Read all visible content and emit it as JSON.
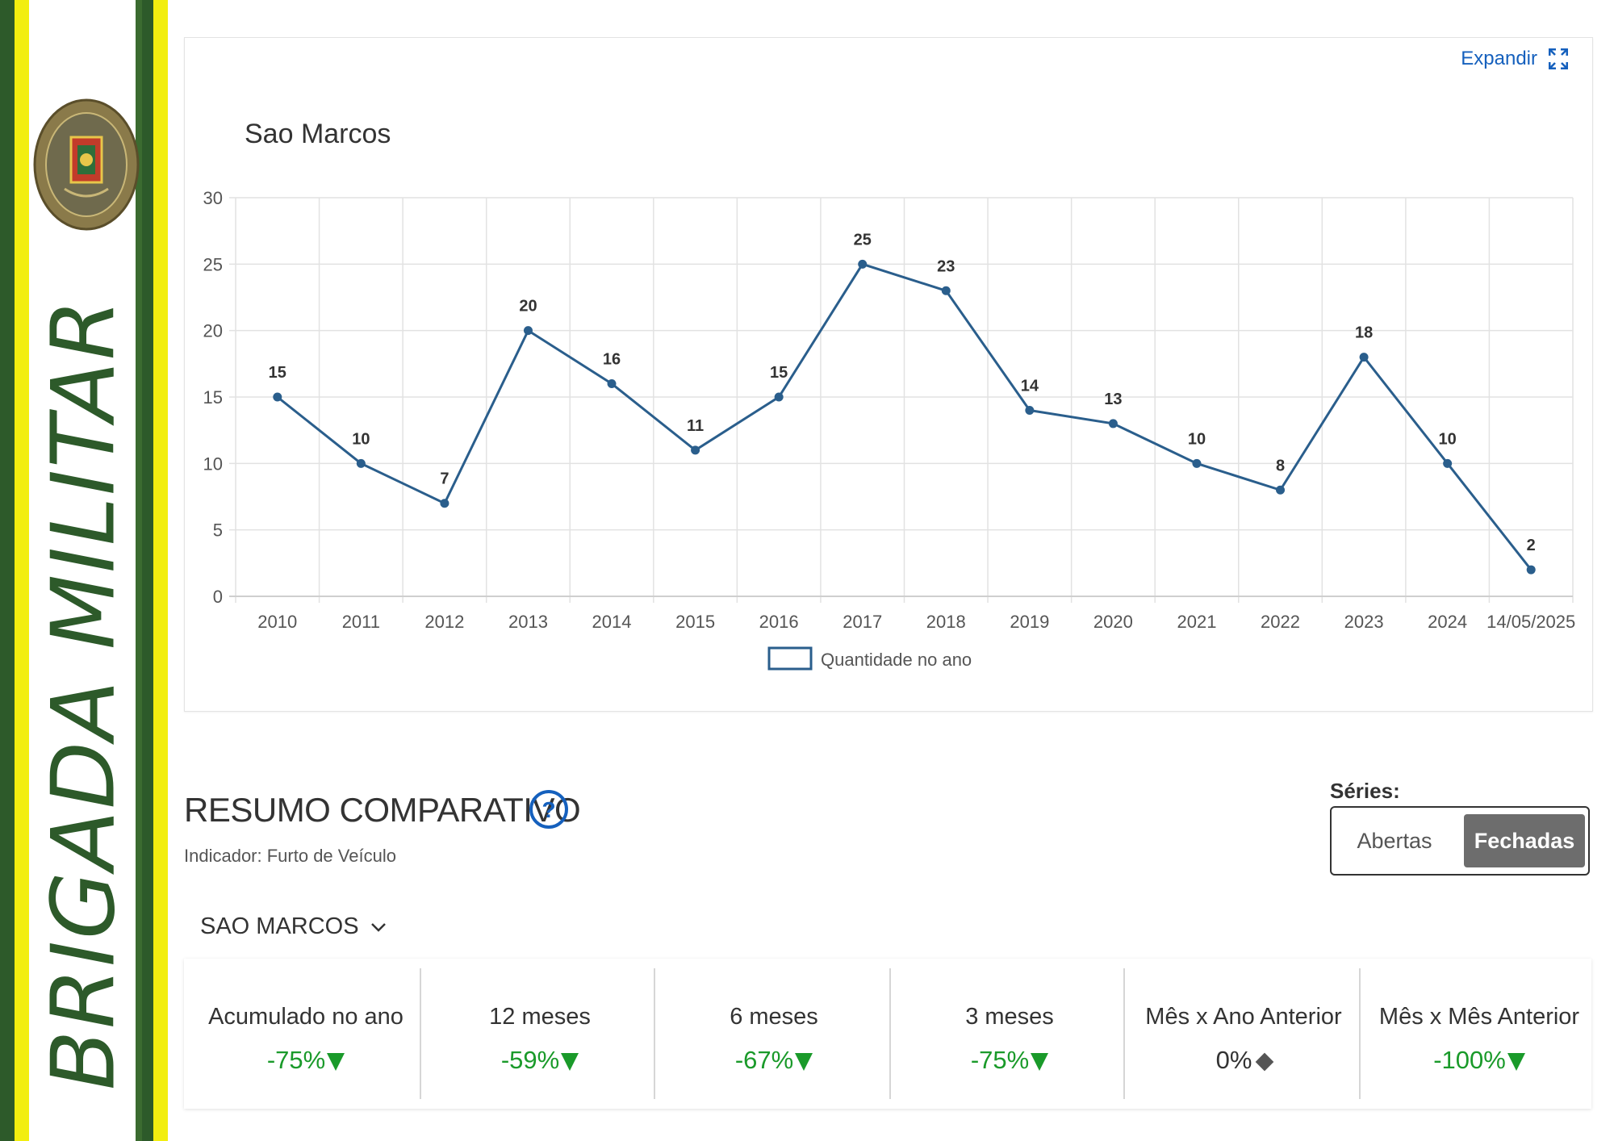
{
  "sidebar": {
    "brand_text": "BRIGADA MILITAR",
    "icon": "military-emblem-icon"
  },
  "chart_card": {
    "expand_label": "Expandir",
    "title": "Sao Marcos"
  },
  "chart_data": {
    "type": "line",
    "title": "Sao Marcos",
    "categories": [
      "2010",
      "2011",
      "2012",
      "2013",
      "2014",
      "2015",
      "2016",
      "2017",
      "2018",
      "2019",
      "2020",
      "2021",
      "2022",
      "2023",
      "2024",
      "14/05/2025"
    ],
    "series": [
      {
        "name": "Quantidade no ano",
        "values": [
          15,
          10,
          7,
          20,
          16,
          11,
          15,
          25,
          23,
          14,
          13,
          10,
          8,
          18,
          10,
          2
        ]
      }
    ],
    "ylim": [
      0,
      30
    ],
    "yticks": [
      0,
      5,
      10,
      15,
      20,
      25,
      30
    ],
    "grid": true,
    "legend_position": "bottom",
    "data_labels": true,
    "line_color": "#2a5e8c"
  },
  "summary": {
    "title": "RESUMO COMPARATIVO",
    "help_icon": "question-circle-icon",
    "indicator": "Indicador: Furto de Veículo",
    "series_label": "Séries:",
    "series_options": [
      "Abertas",
      "Fechadas"
    ],
    "series_selected": "Fechadas",
    "region": "SAO MARCOS",
    "metrics": [
      {
        "label": "Acumulado no ano",
        "value": "-75%",
        "trend": "down"
      },
      {
        "label": "12 meses",
        "value": "-59%",
        "trend": "down"
      },
      {
        "label": "6 meses",
        "value": "-67%",
        "trend": "down"
      },
      {
        "label": "3 meses",
        "value": "-75%",
        "trend": "down"
      },
      {
        "label": "Mês x Ano Anterior",
        "value": "0%",
        "trend": "neutral"
      },
      {
        "label": "Mês x Mês Anterior",
        "value": "-100%",
        "trend": "down"
      }
    ]
  }
}
